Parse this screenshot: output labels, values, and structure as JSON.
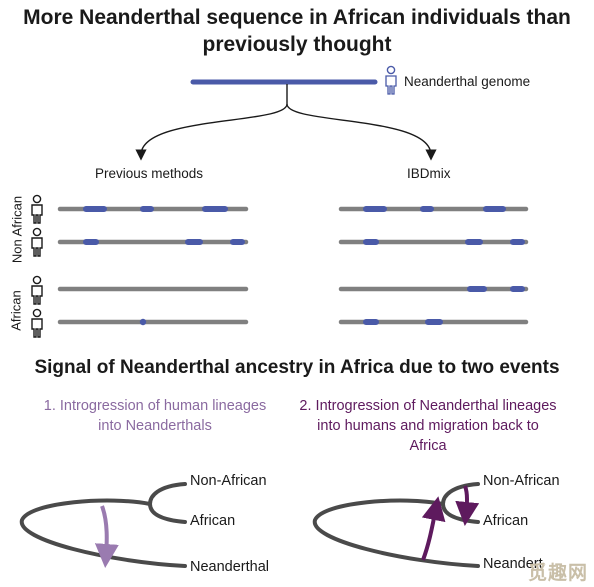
{
  "title": "More Neanderthal sequence in African individuals than previously thought",
  "genome_label": "Neanderthal genome",
  "methods": {
    "left": "Previous methods",
    "right": "IBDmix"
  },
  "groups": {
    "non_african": "Non African",
    "african": "African"
  },
  "section_title": "Signal of Neanderthal ancestry in Africa due to two events",
  "events": {
    "event1": "1. Introgression of human lineages into Neanderthals",
    "event2": "2. Introgression of Neanderthal lineages into humans and migration back to Africa"
  },
  "tree_labels": {
    "non_african": "Non-African",
    "african": "African",
    "neanderthal": "Neanderthal"
  },
  "colors": {
    "chromosome": "#808080",
    "neanderthal_segment": "#4a5aa8",
    "event1_arrow": "#9a7bb0",
    "event2_arrow": "#5e1a5e",
    "event1_text": "#8a6aa0",
    "event2_text": "#5e1a5e"
  },
  "watermark": "觅趣网"
}
